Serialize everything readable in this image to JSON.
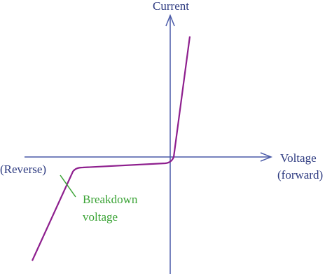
{
  "axes": {
    "y_label": "Current",
    "x_label": "Voltage",
    "x_label_sub": "(forward)",
    "reverse_label": "(Reverse)"
  },
  "annotation": {
    "lines": [
      "Breakdown",
      "voltage"
    ]
  }
}
